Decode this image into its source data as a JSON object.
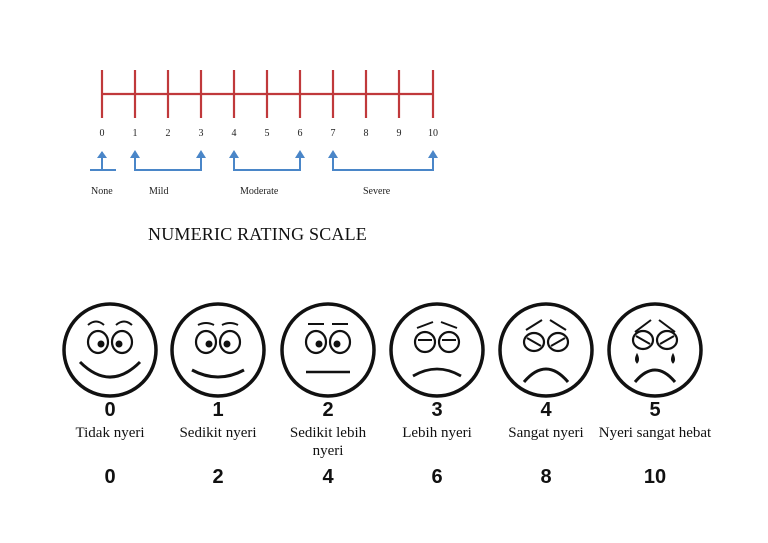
{
  "scale": {
    "ticks": [
      "0",
      "1",
      "2",
      "3",
      "4",
      "5",
      "6",
      "7",
      "8",
      "9",
      "10"
    ],
    "ranges": [
      {
        "label": "None"
      },
      {
        "label": "Mild"
      },
      {
        "label": "Moderate"
      },
      {
        "label": "Severe"
      }
    ],
    "line_color": "#c0393b",
    "bracket_color": "#4a86c8"
  },
  "title": "NUMERIC RATING SCALE",
  "faces": [
    {
      "number": "0",
      "description": "Tidak nyeri",
      "score": "0",
      "icon": "smiling-face-icon"
    },
    {
      "number": "1",
      "description": "Sedikit nyeri",
      "score": "2",
      "icon": "mild-smile-face-icon"
    },
    {
      "number": "2",
      "description": "Sedikit lebih nyeri",
      "score": "4",
      "icon": "neutral-face-icon"
    },
    {
      "number": "3",
      "description": "Lebih nyeri",
      "score": "6",
      "icon": "slight-frown-face-icon"
    },
    {
      "number": "4",
      "description": "Sangat nyeri",
      "score": "8",
      "icon": "frowning-face-icon"
    },
    {
      "number": "5",
      "description": "Nyeri sangat hebat",
      "score": "10",
      "icon": "crying-face-icon"
    }
  ]
}
